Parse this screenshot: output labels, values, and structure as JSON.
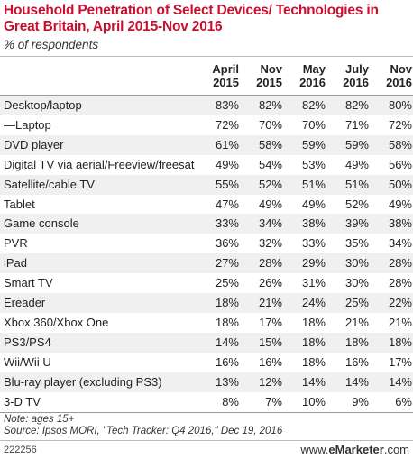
{
  "chart_data": {
    "type": "table",
    "title": "Household Penetration of Select Devices/ Technologies in Great Britain, April 2015-Nov 2016",
    "subtitle": "% of respondents",
    "columns": [
      {
        "line1": "April",
        "line2": "2015"
      },
      {
        "line1": "Nov",
        "line2": "2015"
      },
      {
        "line1": "May",
        "line2": "2016"
      },
      {
        "line1": "July",
        "line2": "2016"
      },
      {
        "line1": "Nov",
        "line2": "2016"
      }
    ],
    "rows": [
      {
        "label": "Desktop/laptop",
        "values": [
          "83%",
          "82%",
          "82%",
          "82%",
          "80%"
        ]
      },
      {
        "label": "—Laptop",
        "values": [
          "72%",
          "70%",
          "70%",
          "71%",
          "72%"
        ]
      },
      {
        "label": "DVD player",
        "values": [
          "61%",
          "58%",
          "59%",
          "59%",
          "58%"
        ]
      },
      {
        "label": "Digital TV via aerial/Freeview/freesat",
        "values": [
          "49%",
          "54%",
          "53%",
          "49%",
          "56%"
        ]
      },
      {
        "label": "Satellite/cable TV",
        "values": [
          "55%",
          "52%",
          "51%",
          "51%",
          "50%"
        ]
      },
      {
        "label": "Tablet",
        "values": [
          "47%",
          "49%",
          "49%",
          "52%",
          "49%"
        ]
      },
      {
        "label": "Game console",
        "values": [
          "33%",
          "34%",
          "38%",
          "39%",
          "38%"
        ]
      },
      {
        "label": "PVR",
        "values": [
          "36%",
          "32%",
          "33%",
          "35%",
          "34%"
        ]
      },
      {
        "label": "iPad",
        "values": [
          "27%",
          "28%",
          "29%",
          "30%",
          "28%"
        ]
      },
      {
        "label": "Smart TV",
        "values": [
          "25%",
          "26%",
          "31%",
          "30%",
          "28%"
        ]
      },
      {
        "label": "Ereader",
        "values": [
          "18%",
          "21%",
          "24%",
          "25%",
          "22%"
        ]
      },
      {
        "label": "Xbox 360/Xbox One",
        "values": [
          "18%",
          "17%",
          "18%",
          "21%",
          "21%"
        ]
      },
      {
        "label": "PS3/PS4",
        "values": [
          "14%",
          "15%",
          "18%",
          "18%",
          "18%"
        ]
      },
      {
        "label": "Wii/Wii U",
        "values": [
          "16%",
          "16%",
          "18%",
          "16%",
          "17%"
        ]
      },
      {
        "label": "Blu-ray player (excluding PS3)",
        "values": [
          "13%",
          "12%",
          "14%",
          "14%",
          "14%"
        ]
      },
      {
        "label": "3-D TV",
        "values": [
          "8%",
          "7%",
          "10%",
          "9%",
          "6%"
        ]
      }
    ]
  },
  "note": "Note: ages 15+",
  "source": "Source: Ipsos MORI, \"Tech Tracker: Q4 2016,\" Dec 19, 2016",
  "footer": {
    "id": "222256",
    "brand_prefix": "www.",
    "brand_name": "eMarketer",
    "brand_suffix": ".com"
  }
}
